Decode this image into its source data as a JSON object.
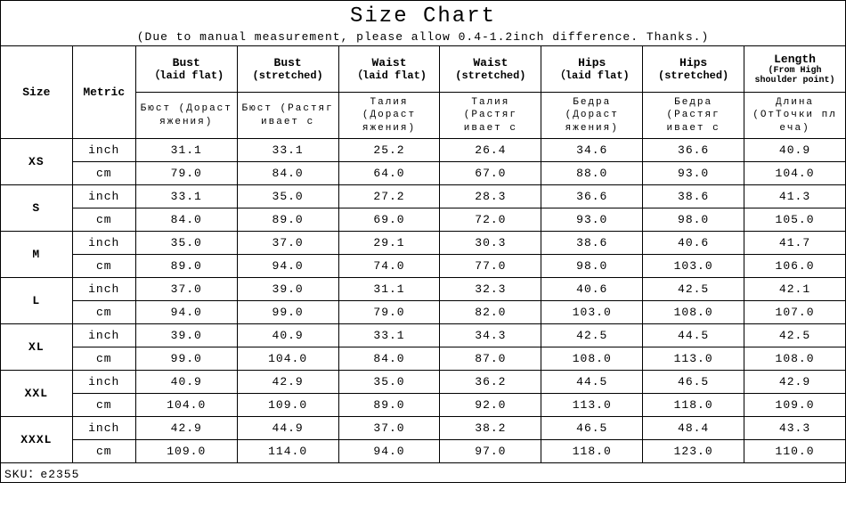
{
  "title": "Size Chart",
  "subtitle": "(Due to manual measurement, please allow 0.4-1.2inch difference. Thanks.)",
  "background_color": "#ffffff",
  "border_color": "#000000",
  "font_family": "Courier New",
  "headers": {
    "size": "Size",
    "metric": "Metric",
    "cols": [
      {
        "main": "Bust",
        "sub": "（laid flat)"
      },
      {
        "main": "Bust",
        "sub": "(stretched)"
      },
      {
        "main": "Waist",
        "sub": "（laid flat)"
      },
      {
        "main": "Waist",
        "sub": "(stretched)"
      },
      {
        "main": "Hips",
        "sub": "（laid flat)"
      },
      {
        "main": "Hips",
        "sub": "(stretched)"
      },
      {
        "main": "Length",
        "sub": "(From High shoulder point)"
      }
    ]
  },
  "ru_row": [
    "Бюст (Дораст яжения)",
    "Бюст (Растяг ивает с",
    "Талия (Дораст яжения)",
    "Талия (Растяг ивает с",
    "Бедра (Дораст яжения)",
    "Бедра (Растяг ивает с",
    "Длина (ОтТочки пл еча)"
  ],
  "metrics": {
    "inch": "inch",
    "cm": "cm"
  },
  "sizes": [
    {
      "label": "XS",
      "inch": [
        "31.1",
        "33.1",
        "25.2",
        "26.4",
        "34.6",
        "36.6",
        "40.9"
      ],
      "cm": [
        "79.0",
        "84.0",
        "64.0",
        "67.0",
        "88.0",
        "93.0",
        "104.0"
      ]
    },
    {
      "label": "S",
      "inch": [
        "33.1",
        "35.0",
        "27.2",
        "28.3",
        "36.6",
        "38.6",
        "41.3"
      ],
      "cm": [
        "84.0",
        "89.0",
        "69.0",
        "72.0",
        "93.0",
        "98.0",
        "105.0"
      ]
    },
    {
      "label": "M",
      "inch": [
        "35.0",
        "37.0",
        "29.1",
        "30.3",
        "38.6",
        "40.6",
        "41.7"
      ],
      "cm": [
        "89.0",
        "94.0",
        "74.0",
        "77.0",
        "98.0",
        "103.0",
        "106.0"
      ]
    },
    {
      "label": "L",
      "inch": [
        "37.0",
        "39.0",
        "31.1",
        "32.3",
        "40.6",
        "42.5",
        "42.1"
      ],
      "cm": [
        "94.0",
        "99.0",
        "79.0",
        "82.0",
        "103.0",
        "108.0",
        "107.0"
      ]
    },
    {
      "label": "XL",
      "inch": [
        "39.0",
        "40.9",
        "33.1",
        "34.3",
        "42.5",
        "44.5",
        "42.5"
      ],
      "cm": [
        "99.0",
        "104.0",
        "84.0",
        "87.0",
        "108.0",
        "113.0",
        "108.0"
      ]
    },
    {
      "label": "XXL",
      "inch": [
        "40.9",
        "42.9",
        "35.0",
        "36.2",
        "44.5",
        "46.5",
        "42.9"
      ],
      "cm": [
        "104.0",
        "109.0",
        "89.0",
        "92.0",
        "113.0",
        "118.0",
        "109.0"
      ]
    },
    {
      "label": "XXXL",
      "inch": [
        "42.9",
        "44.9",
        "37.0",
        "38.2",
        "46.5",
        "48.4",
        "43.3"
      ],
      "cm": [
        "109.0",
        "114.0",
        "94.0",
        "97.0",
        "118.0",
        "123.0",
        "110.0"
      ]
    }
  ],
  "sku_label": "SKU：e2355"
}
